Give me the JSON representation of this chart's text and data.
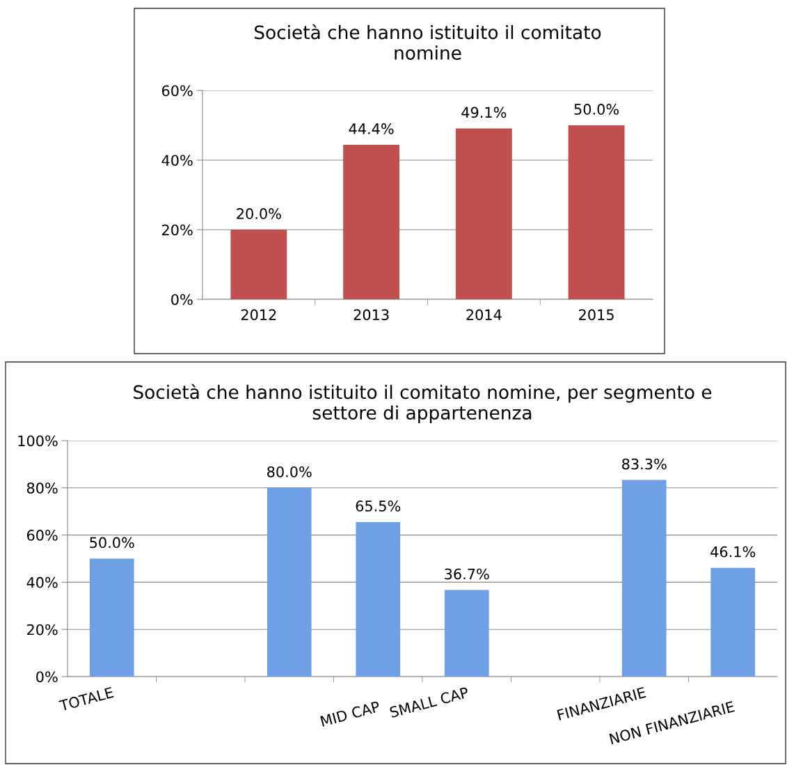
{
  "chart_data": [
    {
      "type": "bar",
      "title": "Società che hanno istituito il comitato\nnomine",
      "categories": [
        "2012",
        "2013",
        "2014",
        "2015"
      ],
      "values": [
        20.0,
        44.4,
        49.1,
        50.0
      ],
      "color": "#c0504d",
      "value_labels": [
        "20.0%",
        "44.4%",
        "49.1%",
        "50.0%"
      ],
      "ylim": [
        0,
        60
      ],
      "yticks": [
        {
          "value": 0,
          "label": "0%"
        },
        {
          "value": 20,
          "label": "20%"
        },
        {
          "value": 40,
          "label": "40%"
        },
        {
          "value": 60,
          "label": "60%"
        }
      ],
      "grid": "y"
    },
    {
      "type": "bar",
      "title": "Società che hanno istituito il comitato nomine, per segmento e\nsettore di appartenenza",
      "categories": [
        "TOTALE",
        null,
        null,
        "MID CAP",
        "SMALL CAP",
        null,
        "FINANZIARIE",
        "NON FINANZIARIE"
      ],
      "values": [
        50.0,
        null,
        80.0,
        65.5,
        36.7,
        null,
        83.3,
        46.1
      ],
      "color": "#6fa0e6",
      "value_labels": [
        "50.0%",
        null,
        "80.0%",
        "65.5%",
        "36.7%",
        null,
        "83.3%",
        "46.1%"
      ],
      "ylim": [
        0,
        100
      ],
      "yticks": [
        {
          "value": 0,
          "label": "0%"
        },
        {
          "value": 20,
          "label": "20%"
        },
        {
          "value": 40,
          "label": "40%"
        },
        {
          "value": 60,
          "label": "60%"
        },
        {
          "value": 80,
          "label": "80%"
        },
        {
          "value": 100,
          "label": "100%"
        }
      ],
      "grid": "y"
    }
  ]
}
